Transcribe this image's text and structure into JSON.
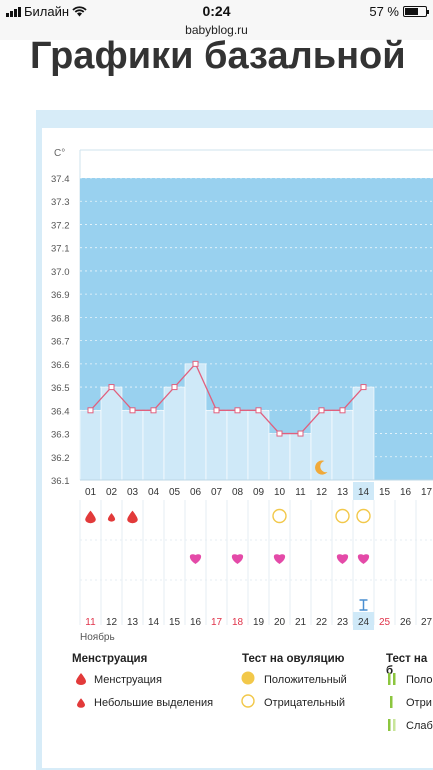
{
  "status_bar": {
    "carrier": "Билайн",
    "time": "0:24",
    "battery": "57 %",
    "battery_level": 0.57
  },
  "address_bar": {
    "url": "babyblog.ru"
  },
  "page": {
    "headline": "Графики базальной"
  },
  "chart_data": {
    "type": "line",
    "y_unit": "C°",
    "yticks": [
      "37.4",
      "37.3",
      "37.2",
      "37.1",
      "37.0",
      "36.9",
      "36.8",
      "36.7",
      "36.6",
      "36.5",
      "36.4",
      "36.3",
      "36.2",
      "36.1"
    ],
    "ylim": [
      36.1,
      37.4
    ],
    "cycle_days": [
      "01",
      "02",
      "03",
      "04",
      "05",
      "06",
      "07",
      "08",
      "09",
      "10",
      "11",
      "12",
      "13",
      "14",
      "15",
      "16",
      "17"
    ],
    "dates": [
      "11",
      "12",
      "13",
      "14",
      "15",
      "16",
      "17",
      "18",
      "19",
      "20",
      "21",
      "22",
      "23",
      "24",
      "25",
      "26",
      "27"
    ],
    "weekend_dates": [
      "11",
      "17",
      "18",
      "25"
    ],
    "current_date": "24",
    "month": "Ноябрь",
    "temperatures": [
      36.4,
      36.5,
      36.4,
      36.4,
      36.5,
      36.6,
      36.4,
      36.4,
      36.4,
      36.3,
      36.3,
      36.4,
      36.4,
      36.5
    ],
    "menstruation_days": [
      "01",
      "03"
    ],
    "light_discharge_days": [
      "02"
    ],
    "negative_ovulation_test_days": [
      "10",
      "13",
      "14"
    ],
    "heart_days": [
      "06",
      "08",
      "10",
      "13",
      "14"
    ],
    "moon_days": [
      "12"
    ],
    "grid": true
  },
  "legend": {
    "menstruation": {
      "title": "Менструация",
      "items": [
        "Менструация",
        "Небольшие выделения"
      ]
    },
    "ovulation_test": {
      "title": "Тест на овуляцию",
      "items": [
        "Положительный",
        "Отрицательный"
      ]
    },
    "third": {
      "title": "Тест на б",
      "items": [
        "Поло",
        "Отри",
        "Слаб"
      ]
    }
  },
  "colors": {
    "fill_sky": "#99d1ef",
    "bar": "#cfe9f8",
    "line": "#e0607e",
    "red_drop": "#e23a3a",
    "heart": "#e44aa8",
    "ring": "#f2c84a",
    "weekend": "#e0334a",
    "panel": "#d7ecf8"
  }
}
